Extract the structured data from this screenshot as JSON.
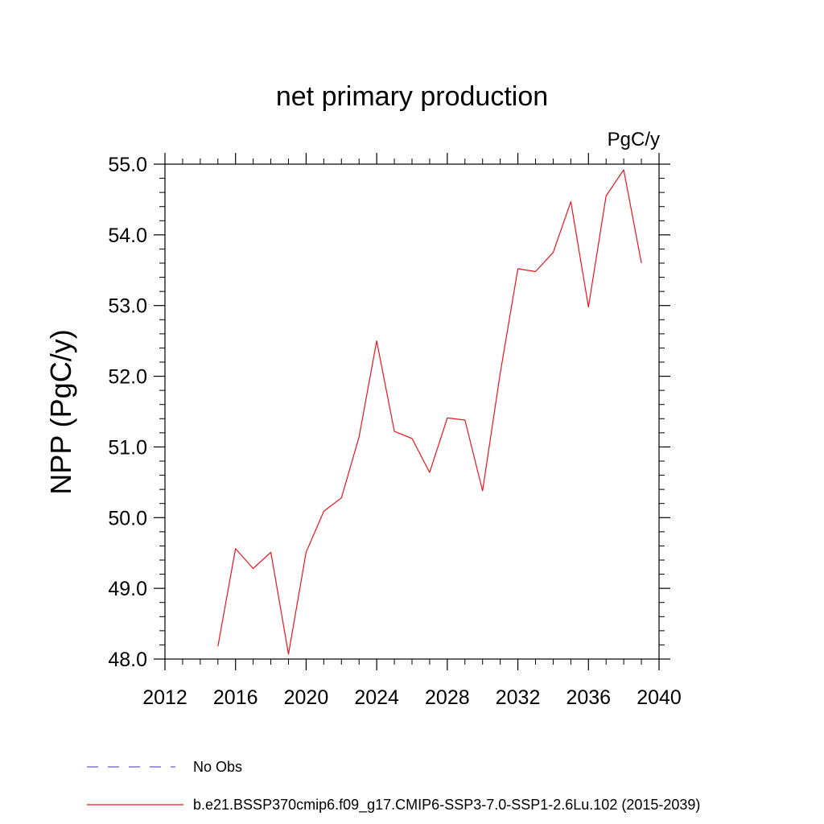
{
  "chart_data": {
    "type": "line",
    "title": "net primary production",
    "units_label": "PgC/y",
    "xlabel": "",
    "ylabel": "NPP  (PgC/y)",
    "xlim": [
      2012,
      2040
    ],
    "ylim": [
      48.0,
      55.0
    ],
    "x_ticks": [
      2012,
      2016,
      2020,
      2024,
      2028,
      2032,
      2036,
      2040
    ],
    "y_ticks": [
      "48.0",
      "49.0",
      "50.0",
      "51.0",
      "52.0",
      "53.0",
      "54.0",
      "55.0"
    ],
    "grid": false,
    "legend_position": "bottom-left",
    "series": [
      {
        "name": "b.e21.BSSP370cmip6.f09_g17.CMIP6-SSP3-7.0-SSP1-2.6Lu.102 (2015-2039)",
        "color": "#e8141e",
        "style": "solid",
        "x": [
          2015,
          2016,
          2017,
          2018,
          2019,
          2020,
          2021,
          2022,
          2023,
          2024,
          2025,
          2026,
          2027,
          2028,
          2029,
          2030,
          2031,
          2032,
          2033,
          2034,
          2035,
          2036,
          2037,
          2038,
          2039
        ],
        "y": [
          48.18,
          49.56,
          49.28,
          49.51,
          48.07,
          49.51,
          50.09,
          50.28,
          51.14,
          52.5,
          51.22,
          51.12,
          50.64,
          51.41,
          51.38,
          50.38,
          52.04,
          53.52,
          53.48,
          53.75,
          54.47,
          52.98,
          54.55,
          54.92,
          53.6
        ]
      }
    ],
    "legend": [
      {
        "label": "No Obs",
        "color": "#6a5acd",
        "style": "dashed"
      },
      {
        "label": "b.e21.BSSP370cmip6.f09_g17.CMIP6-SSP3-7.0-SSP1-2.6Lu.102 (2015-2039)",
        "color": "#e8141e",
        "style": "solid"
      }
    ]
  }
}
